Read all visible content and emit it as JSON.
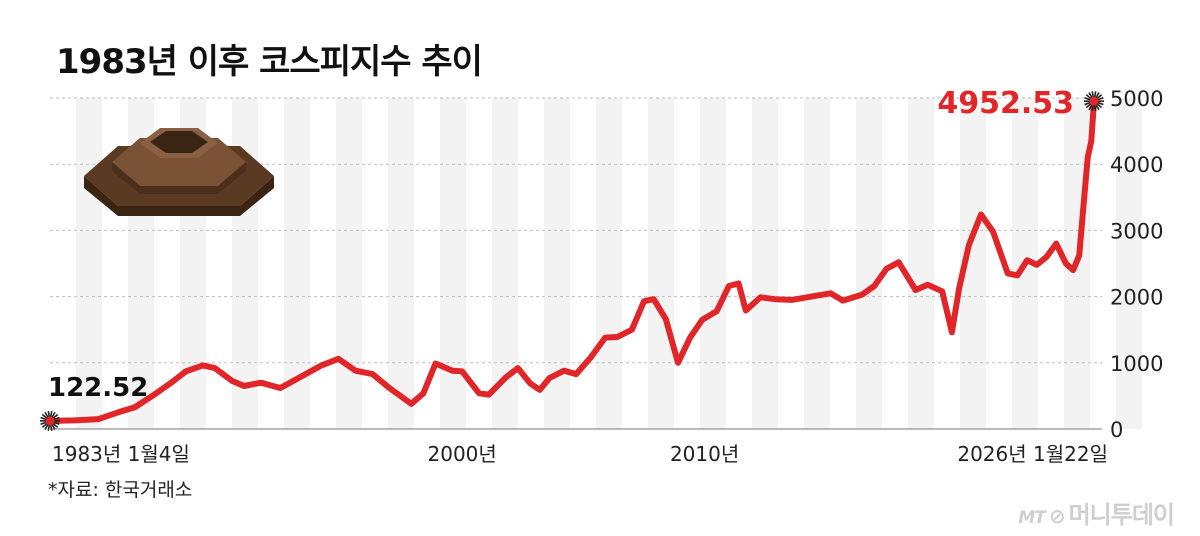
{
  "title": "1983년 이후 코스피지수 추이",
  "source": "*자료: 한국거래소",
  "brand": {
    "logo": "MT",
    "name": "머니투데이"
  },
  "colors": {
    "line": "#e1262a",
    "grid": "#bfbfbf",
    "band": "#f3f3f3"
  },
  "chart_data": {
    "type": "line",
    "title": "1983년 이후 코스피지수 추이",
    "ylim": [
      0,
      5000
    ],
    "yticks": [
      0,
      1000,
      2000,
      3000,
      4000,
      5000
    ],
    "xlim": [
      1983.0,
      2026.06
    ],
    "x_tick_labels": [
      {
        "x": 1983.0,
        "label": "1983년 1월4일"
      },
      {
        "x": 2000.0,
        "label": "2000년"
      },
      {
        "x": 2010.0,
        "label": "2010년"
      },
      {
        "x": 2026.06,
        "label": "2026년 1월22일"
      }
    ],
    "annotations": [
      {
        "x": 1983.0,
        "y": 122.52,
        "label": "122.52"
      },
      {
        "x": 2026.06,
        "y": 4952.53,
        "label": "4952.53"
      }
    ],
    "series": [
      {
        "x": [
          1983.0,
          1984.0,
          1985.0,
          1985.8,
          1986.5,
          1987.3,
          1988.0,
          1988.6,
          1989.3,
          1989.8,
          1990.5,
          1991.0,
          1991.7,
          1992.5,
          1993.3,
          1994.2,
          1994.9,
          1995.6,
          1996.3,
          1997.0,
          1997.9,
          1998.4,
          1998.9,
          1999.6,
          2000.0,
          2000.7,
          2001.1,
          2001.8,
          2002.3,
          2002.8,
          2003.2,
          2003.6,
          2004.2,
          2004.7,
          2005.3,
          2005.9,
          2006.4,
          2007.0,
          2007.5,
          2007.9,
          2008.4,
          2008.9,
          2009.4,
          2009.9,
          2010.5,
          2011.0,
          2011.4,
          2011.7,
          2012.3,
          2012.9,
          2013.6,
          2014.4,
          2015.2,
          2015.7,
          2016.5,
          2017.0,
          2017.5,
          2018.0,
          2018.7,
          2019.2,
          2019.8,
          2020.2,
          2020.5,
          2020.9,
          2021.4,
          2021.9,
          2022.5,
          2022.9,
          2023.3,
          2023.7,
          2024.1,
          2024.5,
          2024.9,
          2025.2,
          2025.45,
          2025.6,
          2025.8,
          2025.95,
          2026.06
        ],
        "y": [
          122.52,
          130,
          150,
          250,
          330,
          520,
          700,
          870,
          960,
          920,
          730,
          650,
          700,
          620,
          780,
          960,
          1060,
          880,
          830,
          620,
          380,
          540,
          990,
          880,
          870,
          540,
          520,
          780,
          920,
          690,
          590,
          770,
          880,
          830,
          1080,
          1380,
          1390,
          1500,
          1930,
          1960,
          1660,
          1000,
          1380,
          1650,
          1780,
          2160,
          2200,
          1790,
          1990,
          1960,
          1950,
          2000,
          2050,
          1940,
          2030,
          2160,
          2420,
          2520,
          2100,
          2180,
          2080,
          1460,
          2130,
          2780,
          3240,
          2980,
          2350,
          2320,
          2550,
          2480,
          2600,
          2800,
          2500,
          2400,
          2620,
          3250,
          4100,
          4350,
          4952.53
        ]
      }
    ]
  }
}
